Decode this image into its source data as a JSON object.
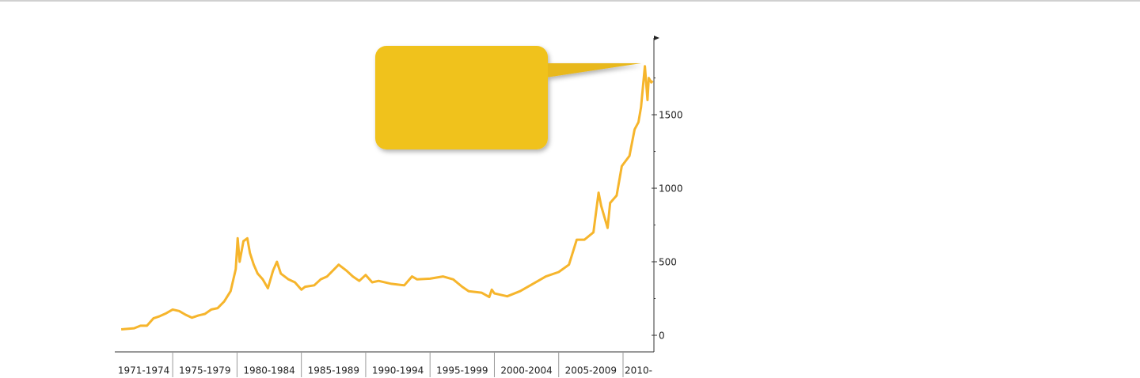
{
  "chart_data": {
    "type": "line",
    "color": "#f6b52c",
    "xlim": [
      1970.5,
      2012.4
    ],
    "ylim": [
      -113,
      2022
    ],
    "yticks": [
      0,
      500,
      1000,
      1500
    ],
    "minor_yticks": [
      250,
      750,
      1250,
      1750
    ],
    "xticks": [
      1975,
      1980,
      1985,
      1990,
      1995,
      2000,
      2005,
      2010
    ],
    "x_period_labels": [
      "1971-1974",
      "1975-1979",
      "1980-1984",
      "1985-1989",
      "1990-1994",
      "1995-1999",
      "2000-2004",
      "2005-2009",
      "2010-"
    ],
    "x": [
      1971.0,
      1972.0,
      1972.5,
      1973.0,
      1973.5,
      1974.0,
      1974.5,
      1975.0,
      1975.5,
      1976.0,
      1976.5,
      1977.0,
      1977.5,
      1978.0,
      1978.5,
      1979.0,
      1979.5,
      1979.9,
      1980.05,
      1980.2,
      1980.5,
      1980.8,
      1981.0,
      1981.3,
      1981.6,
      1982.0,
      1982.4,
      1982.8,
      1983.1,
      1983.4,
      1984.0,
      1984.5,
      1985.0,
      1985.3,
      1986.0,
      1986.5,
      1987.0,
      1987.9,
      1988.5,
      1989.0,
      1989.5,
      1990.0,
      1990.5,
      1991.0,
      1992.0,
      1993.0,
      1993.6,
      1994.0,
      1995.0,
      1996.0,
      1996.8,
      1997.5,
      1998.0,
      1999.0,
      1999.6,
      1999.8,
      2000.0,
      2001.0,
      2002.0,
      2003.0,
      2004.0,
      2005.0,
      2005.8,
      2006.4,
      2007.0,
      2007.7,
      2008.1,
      2008.3,
      2008.8,
      2009.0,
      2009.5,
      2009.9,
      2010.5,
      2010.9,
      2011.2,
      2011.4,
      2011.7,
      2011.9,
      2012.0,
      2012.2,
      2012.3
    ],
    "values": [
      40,
      48,
      65,
      65,
      115,
      130,
      150,
      175,
      165,
      140,
      120,
      135,
      145,
      175,
      185,
      230,
      300,
      450,
      660,
      500,
      640,
      660,
      560,
      480,
      420,
      380,
      320,
      440,
      500,
      420,
      380,
      360,
      310,
      330,
      340,
      380,
      400,
      480,
      440,
      400,
      370,
      410,
      360,
      370,
      350,
      340,
      400,
      380,
      385,
      400,
      380,
      330,
      300,
      290,
      260,
      310,
      285,
      265,
      300,
      350,
      400,
      430,
      480,
      650,
      650,
      700,
      970,
      880,
      730,
      900,
      950,
      1150,
      1220,
      1400,
      1450,
      1550,
      1830,
      1600,
      1750,
      1720,
      1730
    ]
  }
}
